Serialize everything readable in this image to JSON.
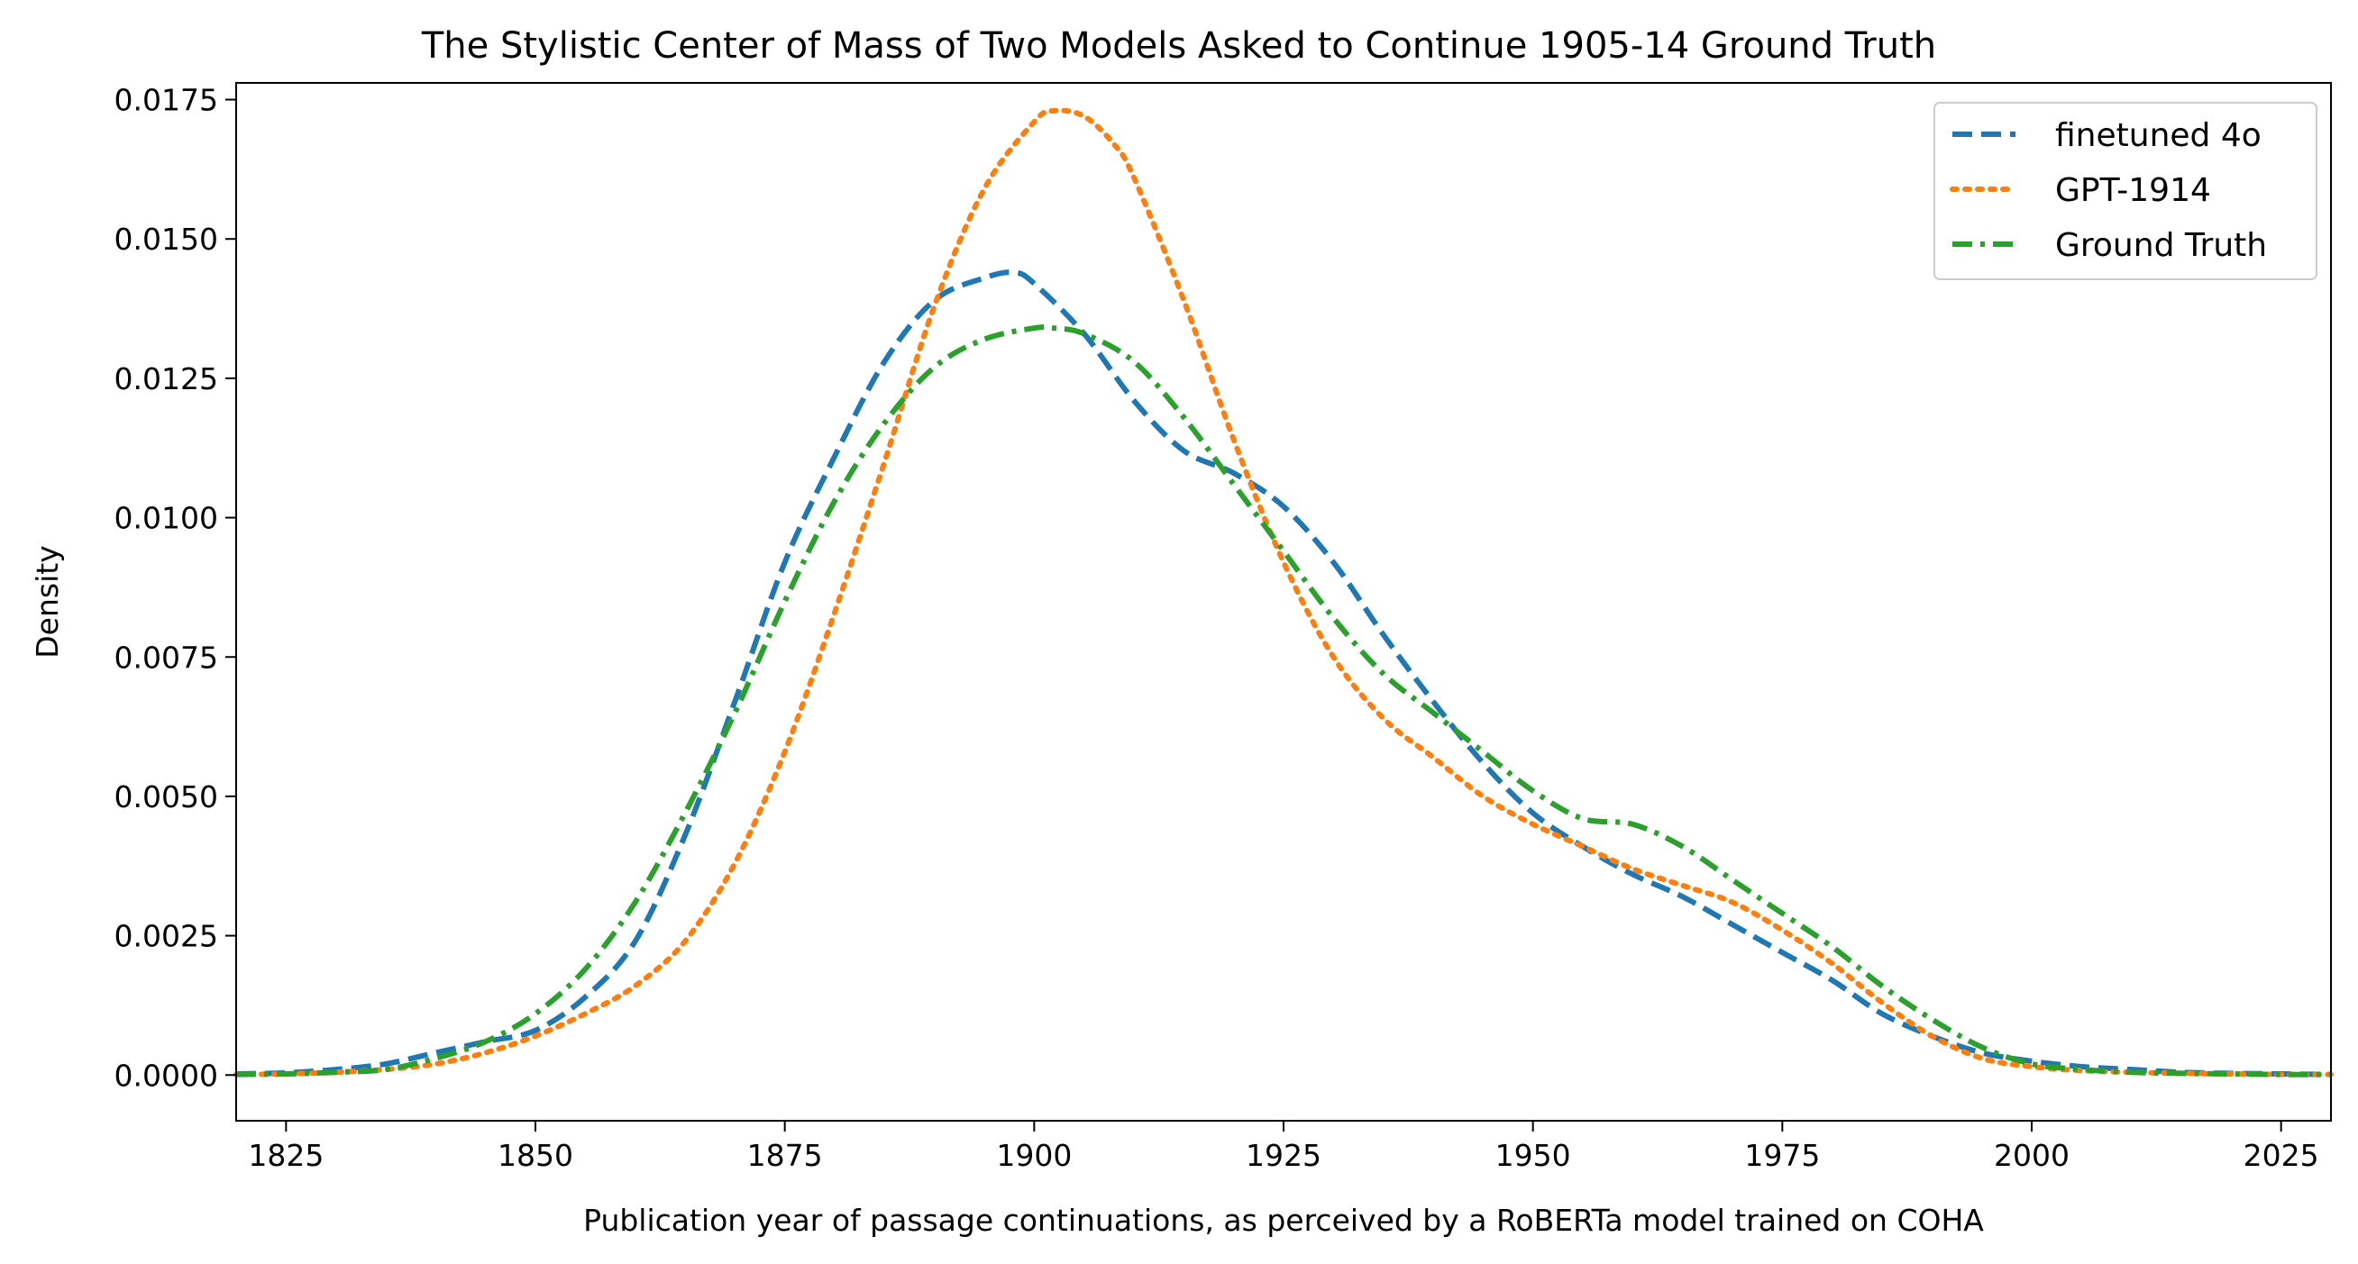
{
  "chart_data": {
    "type": "line",
    "title": "The Stylistic Center of Mass of Two Models Asked to Continue 1905-14 Ground Truth",
    "xlabel": "Publication year of passage continuations, as perceived by a RoBERTa model trained on COHA",
    "ylabel": "Density",
    "xlim": [
      1820,
      2030
    ],
    "ylim": [
      -0.00082,
      0.0178
    ],
    "x_ticks": [
      1825,
      1850,
      1875,
      1900,
      1925,
      1950,
      1975,
      2000,
      2025
    ],
    "x_tick_labels": [
      "1825",
      "1850",
      "1875",
      "1900",
      "1925",
      "1950",
      "1975",
      "2000",
      "2025"
    ],
    "y_ticks": [
      0,
      0.0025,
      0.005,
      0.0075,
      0.01,
      0.0125,
      0.015,
      0.0175
    ],
    "y_tick_labels": [
      "0.0000",
      "0.0025",
      "0.0050",
      "0.0075",
      "0.0100",
      "0.0125",
      "0.0150",
      "0.0175"
    ],
    "grid": false,
    "legend_position": "top-right",
    "series": [
      {
        "name": "finetuned 4o",
        "color": "#1f77b4",
        "dash": "dashed",
        "x": [
          1820,
          1825,
          1830,
          1835,
          1840,
          1845,
          1850,
          1855,
          1860,
          1865,
          1870,
          1875,
          1880,
          1885,
          1890,
          1895,
          1898,
          1900,
          1905,
          1910,
          1915,
          1920,
          1925,
          1930,
          1935,
          1940,
          1945,
          1950,
          1955,
          1960,
          1965,
          1970,
          1975,
          1980,
          1985,
          1990,
          1995,
          2000,
          2005,
          2010,
          2015,
          2020,
          2025,
          2030
        ],
        "y": [
          2e-05,
          4e-05,
          0.0001,
          0.0002,
          0.0004,
          0.0006,
          0.0008,
          0.0014,
          0.0024,
          0.0043,
          0.0067,
          0.0092,
          0.0111,
          0.0128,
          0.0139,
          0.0143,
          0.0144,
          0.0142,
          0.0133,
          0.0121,
          0.0112,
          0.0108,
          0.0102,
          0.0092,
          0.0079,
          0.0067,
          0.0056,
          0.0047,
          0.0041,
          0.0036,
          0.0032,
          0.0027,
          0.0022,
          0.0017,
          0.0011,
          0.0007,
          0.0004,
          0.00025,
          0.00015,
          0.0001,
          5e-05,
          3e-05,
          2e-05,
          1e-05
        ]
      },
      {
        "name": "GPT-1914",
        "color": "#ff7f0e",
        "dash": "dotted",
        "x": [
          1820,
          1825,
          1830,
          1835,
          1840,
          1845,
          1850,
          1855,
          1860,
          1865,
          1870,
          1875,
          1880,
          1885,
          1890,
          1895,
          1900,
          1902,
          1905,
          1908,
          1910,
          1915,
          1920,
          1925,
          1930,
          1935,
          1940,
          1945,
          1950,
          1955,
          1960,
          1965,
          1970,
          1975,
          1980,
          1985,
          1990,
          1995,
          2000,
          2005,
          2010,
          2015,
          2020,
          2025,
          2030
        ],
        "y": [
          1e-05,
          2e-05,
          5e-05,
          0.0001,
          0.0002,
          0.0004,
          0.0007,
          0.0011,
          0.0016,
          0.0024,
          0.0038,
          0.0058,
          0.0083,
          0.011,
          0.0138,
          0.0159,
          0.0171,
          0.0173,
          0.0172,
          0.0167,
          0.0161,
          0.0139,
          0.0114,
          0.0092,
          0.0075,
          0.0064,
          0.0057,
          0.005,
          0.0045,
          0.0041,
          0.0037,
          0.0034,
          0.0031,
          0.0026,
          0.002,
          0.0013,
          0.0007,
          0.0003,
          0.00015,
          8e-05,
          5e-05,
          3e-05,
          2e-05,
          1e-05,
          1e-05
        ]
      },
      {
        "name": "Ground Truth",
        "color": "#2ca02c",
        "dash": "dashdot",
        "x": [
          1820,
          1825,
          1830,
          1835,
          1840,
          1845,
          1850,
          1855,
          1860,
          1865,
          1870,
          1875,
          1880,
          1885,
          1890,
          1895,
          1900,
          1902,
          1905,
          1910,
          1915,
          1920,
          1925,
          1930,
          1935,
          1940,
          1945,
          1950,
          1955,
          1960,
          1965,
          1970,
          1975,
          1980,
          1985,
          1990,
          1995,
          2000,
          2005,
          2010,
          2015,
          2020,
          2025,
          2030
        ],
        "y": [
          1e-05,
          2e-05,
          5e-05,
          0.0001,
          0.0003,
          0.0006,
          0.0011,
          0.0019,
          0.0031,
          0.0047,
          0.0065,
          0.0085,
          0.0103,
          0.0117,
          0.0127,
          0.0132,
          0.0134,
          0.0134,
          0.0133,
          0.0128,
          0.0118,
          0.0106,
          0.0094,
          0.0082,
          0.0072,
          0.0065,
          0.0058,
          0.0051,
          0.0046,
          0.0045,
          0.0041,
          0.0035,
          0.0029,
          0.0023,
          0.0016,
          0.001,
          0.0005,
          0.0002,
          0.0001,
          5e-05,
          3e-05,
          2e-05,
          1e-05,
          1e-05
        ]
      }
    ]
  }
}
